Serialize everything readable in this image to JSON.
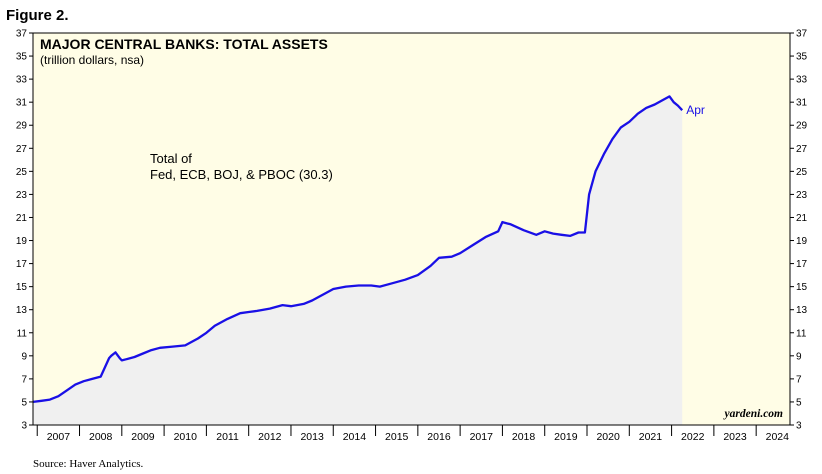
{
  "figure_label": "Figure 2.",
  "source": "Source: Haver Analytics.",
  "brand": "yardeni.com",
  "colors": {
    "plot_background": "#fffde6",
    "area_fill": "#f0f0f0",
    "line": "#1a10e6",
    "frame": "#000000"
  },
  "chart_data": {
    "type": "area",
    "title": "MAJOR CENTRAL BANKS: TOTAL ASSETS",
    "subtitle": "(trillion dollars, nsa)",
    "ylim": [
      3,
      37
    ],
    "y_ticks": [
      "3",
      "5",
      "7",
      "9",
      "11",
      "13",
      "15",
      "17",
      "19",
      "21",
      "23",
      "25",
      "27",
      "29",
      "31",
      "33",
      "35",
      "37"
    ],
    "xlim": [
      2006.9,
      2024.8
    ],
    "x_tick_labels": [
      "2007",
      "2008",
      "2009",
      "2010",
      "2011",
      "2012",
      "2013",
      "2014",
      "2015",
      "2016",
      "2017",
      "2018",
      "2019",
      "2020",
      "2021",
      "2022",
      "2023",
      "2024"
    ],
    "grid": false,
    "annotation_line1": "Total of",
    "annotation_line2": "Fed, ECB, BOJ, & PBOC (30.3)",
    "end_label": "Apr",
    "series": [
      {
        "x": [
          2006.9,
          2007.1,
          2007.3,
          2007.5,
          2007.7,
          2007.9,
          2008.1,
          2008.3,
          2008.5,
          2008.7,
          2008.75,
          2008.85,
          2008.95,
          2009.0,
          2009.1,
          2009.3,
          2009.5,
          2009.7,
          2009.9,
          2010.2,
          2010.5,
          2010.8,
          2011.0,
          2011.2,
          2011.5,
          2011.8,
          2012.0,
          2012.2,
          2012.5,
          2012.8,
          2013.0,
          2013.3,
          2013.5,
          2013.8,
          2014.0,
          2014.3,
          2014.6,
          2014.9,
          2015.1,
          2015.4,
          2015.7,
          2016.0,
          2016.3,
          2016.5,
          2016.8,
          2017.0,
          2017.3,
          2017.6,
          2017.9,
          2018.0,
          2018.2,
          2018.5,
          2018.8,
          2019.0,
          2019.2,
          2019.4,
          2019.6,
          2019.8,
          2019.95,
          2020.05,
          2020.2,
          2020.4,
          2020.6,
          2020.8,
          2021.0,
          2021.2,
          2021.4,
          2021.6,
          2021.8,
          2021.95,
          2022.05,
          2022.15,
          2022.25
        ],
        "y": [
          5.0,
          5.1,
          5.2,
          5.5,
          6.0,
          6.5,
          6.8,
          7.0,
          7.2,
          8.8,
          9.0,
          9.3,
          8.8,
          8.6,
          8.7,
          8.9,
          9.2,
          9.5,
          9.7,
          9.8,
          9.9,
          10.5,
          11.0,
          11.6,
          12.2,
          12.7,
          12.8,
          12.9,
          13.1,
          13.4,
          13.3,
          13.5,
          13.8,
          14.4,
          14.8,
          15.0,
          15.1,
          15.1,
          15.0,
          15.3,
          15.6,
          16.0,
          16.8,
          17.5,
          17.6,
          17.9,
          18.6,
          19.3,
          19.8,
          20.6,
          20.4,
          19.9,
          19.5,
          19.8,
          19.6,
          19.5,
          19.4,
          19.7,
          19.7,
          23.0,
          25.0,
          26.5,
          27.8,
          28.8,
          29.3,
          30.0,
          30.5,
          30.8,
          31.2,
          31.5,
          31.0,
          30.7,
          30.3
        ]
      }
    ]
  }
}
